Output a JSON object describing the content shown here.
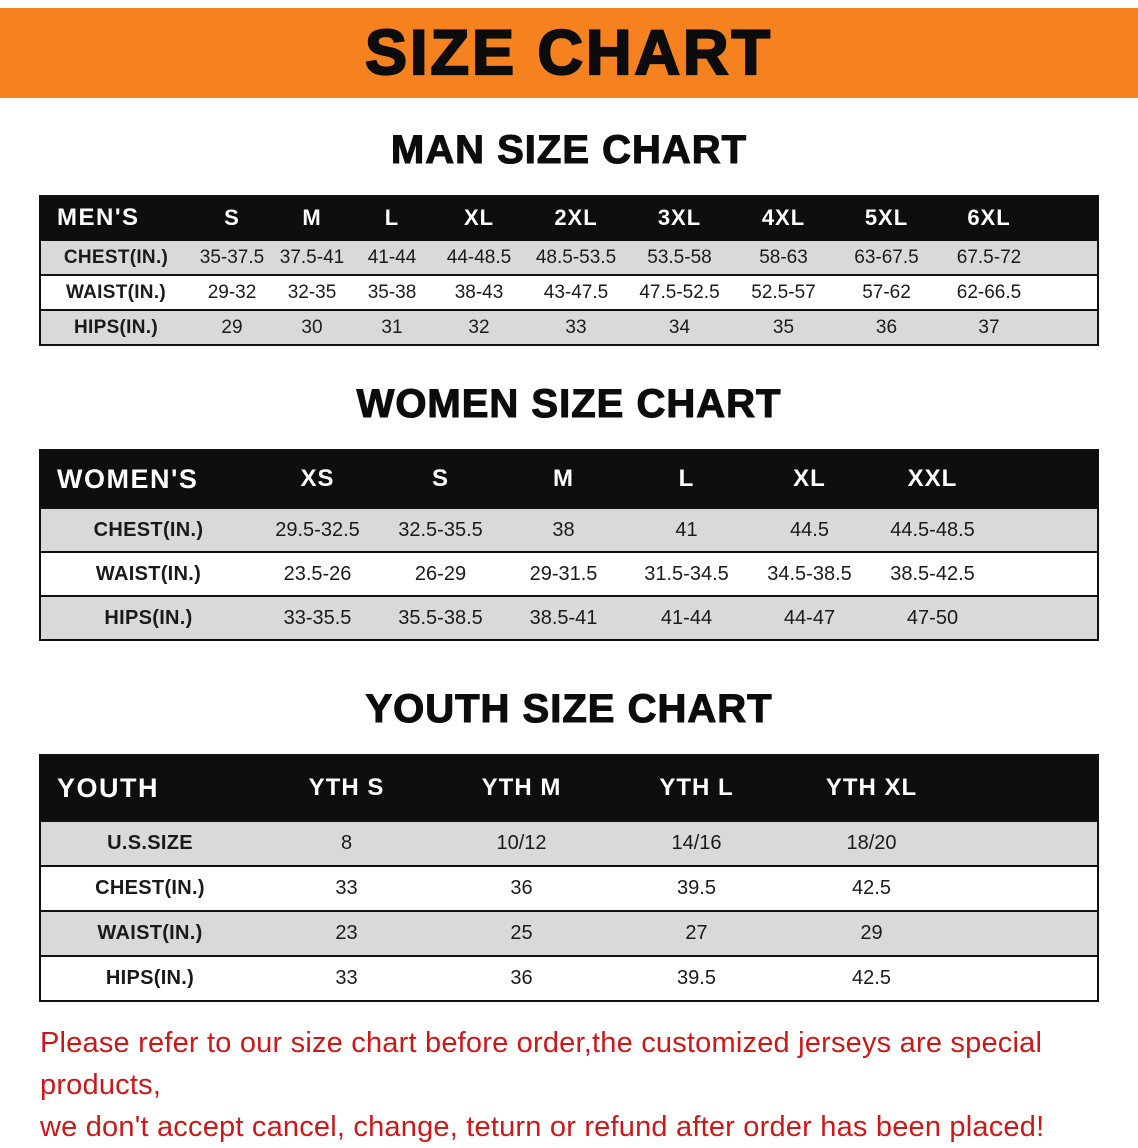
{
  "banner": {
    "title": "SIZE CHART",
    "bg_color": "#F5821F"
  },
  "sections": [
    {
      "id": "man",
      "heading": "MAN SIZE CHART",
      "table": {
        "style": "t-men",
        "header": [
          "MEN'S",
          "S",
          "M",
          "L",
          "XL",
          "2XL",
          "3XL",
          "4XL",
          "5XL",
          "6XL"
        ],
        "rows": [
          {
            "label": "CHEST(IN.)",
            "values": [
              "35-37.5",
              "37.5-41",
              "41-44",
              "44-48.5",
              "48.5-53.5",
              "53.5-58",
              "58-63",
              "63-67.5",
              "67.5-72"
            ]
          },
          {
            "label": "WAIST(IN.)",
            "values": [
              "29-32",
              "32-35",
              "35-38",
              "38-43",
              "43-47.5",
              "47.5-52.5",
              "52.5-57",
              "57-62",
              "62-66.5"
            ]
          },
          {
            "label": "HIPS(IN.)",
            "values": [
              "29",
              "30",
              "31",
              "32",
              "33",
              "34",
              "35",
              "36",
              "37"
            ]
          }
        ]
      }
    },
    {
      "id": "women",
      "heading": "WOMEN SIZE CHART",
      "table": {
        "style": "t-women",
        "header": [
          "WOMEN'S",
          "XS",
          "S",
          "M",
          "L",
          "XL",
          "XXL"
        ],
        "rows": [
          {
            "label": "CHEST(IN.)",
            "values": [
              "29.5-32.5",
              "32.5-35.5",
              "38",
              "41",
              "44.5",
              "44.5-48.5"
            ]
          },
          {
            "label": "WAIST(IN.)",
            "values": [
              "23.5-26",
              "26-29",
              "29-31.5",
              "31.5-34.5",
              "34.5-38.5",
              "38.5-42.5"
            ]
          },
          {
            "label": "HIPS(IN.)",
            "values": [
              "33-35.5",
              "35.5-38.5",
              "38.5-41",
              "41-44",
              "44-47",
              "47-50"
            ]
          }
        ]
      }
    },
    {
      "id": "youth",
      "heading": "YOUTH SIZE CHART",
      "table": {
        "style": "t-youth",
        "header": [
          "YOUTH",
          "YTH S",
          "YTH M",
          "YTH L",
          "YTH XL"
        ],
        "rows": [
          {
            "label": "U.S.SIZE",
            "values": [
              "8",
              "10/12",
              "14/16",
              "18/20"
            ]
          },
          {
            "label": "CHEST(IN.)",
            "values": [
              "33",
              "36",
              "39.5",
              "42.5"
            ]
          },
          {
            "label": "WAIST(IN.)",
            "values": [
              "23",
              "25",
              "27",
              "29"
            ]
          },
          {
            "label": "HIPS(IN.)",
            "values": [
              "33",
              "36",
              "39.5",
              "42.5"
            ]
          }
        ]
      }
    }
  ],
  "footer": {
    "line1": "Please refer to our size chart before order,the customized jerseys are special products,",
    "line2": "we don't accept cancel, change, teturn or refund after order has been placed!",
    "text_color": "#CE1818"
  }
}
